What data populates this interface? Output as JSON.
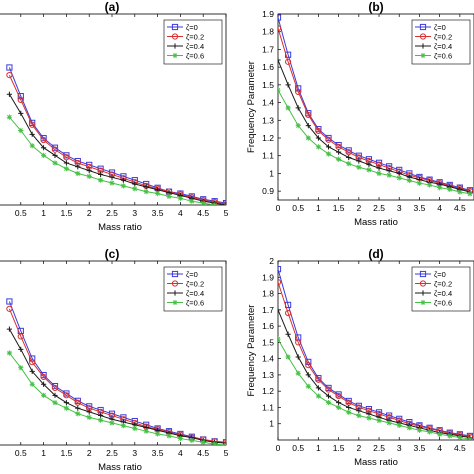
{
  "chart_data": [
    {
      "type": "line",
      "panel_label": "(a)",
      "xlabel": "Mass ratio",
      "ylabel": "",
      "xlim": [
        0,
        5
      ],
      "ylim": [
        0.9,
        1.9
      ],
      "x_ticks": [
        "0.5",
        "1",
        "1.5",
        "2",
        "2.5",
        "3",
        "3.5",
        "4",
        "4.5",
        "5"
      ],
      "y_ticks": [],
      "legend": {
        "placement": "top-right"
      },
      "x": [
        0.25,
        0.5,
        0.75,
        1,
        1.25,
        1.5,
        1.75,
        2,
        2.25,
        2.5,
        2.75,
        3,
        3.25,
        3.5,
        3.75,
        4,
        4.25,
        4.5,
        4.75,
        5
      ],
      "series": [
        {
          "name": "ζ=0",
          "color": "#3b3bdb",
          "marker": "square",
          "values": [
            1.62,
            1.47,
            1.33,
            1.25,
            1.2,
            1.16,
            1.13,
            1.11,
            1.09,
            1.07,
            1.05,
            1.03,
            1.01,
            0.99,
            0.97,
            0.96,
            0.945,
            0.93,
            0.92,
            0.91
          ]
        },
        {
          "name": "ζ=0.2",
          "color": "#d93030",
          "marker": "circle",
          "values": [
            1.58,
            1.45,
            1.32,
            1.24,
            1.19,
            1.15,
            1.12,
            1.1,
            1.08,
            1.06,
            1.04,
            1.02,
            1.0,
            0.985,
            0.97,
            0.955,
            0.94,
            0.925,
            0.915,
            0.905
          ]
        },
        {
          "name": "ζ=0.4",
          "color": "#1a1a1a",
          "marker": "plus",
          "values": [
            1.48,
            1.38,
            1.27,
            1.2,
            1.16,
            1.12,
            1.1,
            1.08,
            1.06,
            1.045,
            1.03,
            1.01,
            0.995,
            0.98,
            0.965,
            0.95,
            0.935,
            0.92,
            0.91,
            0.9
          ]
        },
        {
          "name": "ζ=0.6",
          "color": "#44c044",
          "marker": "star",
          "values": [
            1.36,
            1.29,
            1.21,
            1.16,
            1.12,
            1.09,
            1.065,
            1.05,
            1.03,
            1.015,
            1.0,
            0.985,
            0.97,
            0.96,
            0.945,
            0.935,
            0.92,
            0.91,
            0.9,
            0.89
          ]
        }
      ]
    },
    {
      "type": "line",
      "panel_label": "(b)",
      "xlabel": "Mass ratio",
      "ylabel": "Frequency Parameter",
      "xlim": [
        0,
        4.85
      ],
      "ylim": [
        0.85,
        1.9
      ],
      "x_ticks": [
        "0",
        "0.5",
        "1",
        "1.5",
        "2",
        "2.5",
        "3",
        "3.5",
        "4",
        "4.5"
      ],
      "y_ticks": [
        "0.9",
        "1",
        "1.1",
        "1.2",
        "1.3",
        "1.4",
        "1.5",
        "1.6",
        "1.7",
        "1.8",
        "1.9"
      ],
      "legend": {
        "placement": "top-right"
      },
      "x": [
        0,
        0.25,
        0.5,
        0.75,
        1,
        1.25,
        1.5,
        1.75,
        2,
        2.25,
        2.5,
        2.75,
        3,
        3.25,
        3.5,
        3.75,
        4,
        4.25,
        4.5,
        4.75
      ],
      "series": [
        {
          "name": "ζ=0",
          "color": "#3b3bdb",
          "marker": "square",
          "values": [
            1.88,
            1.67,
            1.48,
            1.34,
            1.25,
            1.2,
            1.16,
            1.13,
            1.1,
            1.08,
            1.06,
            1.04,
            1.02,
            1.0,
            0.98,
            0.965,
            0.95,
            0.935,
            0.92,
            0.905
          ]
        },
        {
          "name": "ζ=0.2",
          "color": "#d93030",
          "marker": "circle",
          "values": [
            1.82,
            1.63,
            1.46,
            1.33,
            1.24,
            1.19,
            1.15,
            1.12,
            1.09,
            1.07,
            1.05,
            1.03,
            1.01,
            0.99,
            0.975,
            0.96,
            0.945,
            0.93,
            0.915,
            0.9
          ]
        },
        {
          "name": "ζ=0.4",
          "color": "#1a1a1a",
          "marker": "plus",
          "values": [
            1.64,
            1.5,
            1.37,
            1.27,
            1.2,
            1.15,
            1.12,
            1.09,
            1.07,
            1.05,
            1.03,
            1.015,
            1.0,
            0.98,
            0.965,
            0.95,
            0.94,
            0.925,
            0.91,
            0.895
          ]
        },
        {
          "name": "ζ=0.6",
          "color": "#44c044",
          "marker": "star",
          "values": [
            1.47,
            1.37,
            1.27,
            1.2,
            1.15,
            1.11,
            1.08,
            1.055,
            1.035,
            1.02,
            1.0,
            0.99,
            0.975,
            0.96,
            0.945,
            0.935,
            0.92,
            0.91,
            0.895,
            0.885
          ]
        }
      ]
    },
    {
      "type": "line",
      "panel_label": "(c)",
      "xlabel": "Mass ratio",
      "ylabel": "",
      "xlim": [
        0,
        5
      ],
      "ylim": [
        0.9,
        1.9
      ],
      "x_ticks": [
        "0.5",
        "1",
        "1.5",
        "2",
        "2.5",
        "3",
        "3.5",
        "4",
        "4.5",
        "5"
      ],
      "y_ticks": [],
      "legend": {
        "placement": "top-right"
      },
      "x": [
        0.25,
        0.5,
        0.75,
        1,
        1.25,
        1.5,
        1.75,
        2,
        2.25,
        2.5,
        2.75,
        3,
        3.25,
        3.5,
        3.75,
        4,
        4.25,
        4.5,
        4.75,
        5
      ],
      "series": [
        {
          "name": "ζ=0",
          "color": "#3b3bdb",
          "marker": "square",
          "values": [
            1.68,
            1.52,
            1.37,
            1.28,
            1.22,
            1.18,
            1.14,
            1.11,
            1.09,
            1.07,
            1.05,
            1.03,
            1.01,
            0.99,
            0.975,
            0.96,
            0.945,
            0.93,
            0.92,
            0.915
          ]
        },
        {
          "name": "ζ=0.2",
          "color": "#d93030",
          "marker": "circle",
          "values": [
            1.64,
            1.49,
            1.35,
            1.27,
            1.21,
            1.17,
            1.13,
            1.1,
            1.08,
            1.06,
            1.04,
            1.02,
            1.0,
            0.985,
            0.97,
            0.955,
            0.94,
            0.93,
            0.92,
            0.915
          ]
        },
        {
          "name": "ζ=0.4",
          "color": "#1a1a1a",
          "marker": "plus",
          "values": [
            1.53,
            1.42,
            1.3,
            1.23,
            1.17,
            1.13,
            1.1,
            1.08,
            1.06,
            1.04,
            1.025,
            1.01,
            0.995,
            0.98,
            0.965,
            0.95,
            0.94,
            0.925,
            0.915,
            0.91
          ]
        },
        {
          "name": "ζ=0.6",
          "color": "#44c044",
          "marker": "star",
          "values": [
            1.4,
            1.32,
            1.23,
            1.17,
            1.13,
            1.1,
            1.07,
            1.05,
            1.035,
            1.02,
            1.005,
            0.99,
            0.975,
            0.96,
            0.95,
            0.935,
            0.925,
            0.915,
            0.905,
            0.9
          ]
        }
      ]
    },
    {
      "type": "line",
      "panel_label": "(d)",
      "xlabel": "Mass ratio",
      "ylabel": "Frequency Parameter",
      "xlim": [
        0,
        4.85
      ],
      "ylim": [
        0.9,
        2.0
      ],
      "x_ticks": [
        "0",
        "0.5",
        "1",
        "1.5",
        "2",
        "2.5",
        "3",
        "3.5",
        "4",
        "4.5"
      ],
      "y_ticks": [
        "1",
        "1.1",
        "1.2",
        "1.3",
        "1.4",
        "1.5",
        "1.6",
        "1.7",
        "1.8",
        "1.9",
        "2"
      ],
      "legend": {
        "placement": "top-right"
      },
      "x": [
        0,
        0.25,
        0.5,
        0.75,
        1,
        1.25,
        1.5,
        1.75,
        2,
        2.25,
        2.5,
        2.75,
        3,
        3.25,
        3.5,
        3.75,
        4,
        4.25,
        4.5,
        4.75
      ],
      "series": [
        {
          "name": "ζ=0",
          "color": "#3b3bdb",
          "marker": "square",
          "values": [
            1.95,
            1.73,
            1.53,
            1.38,
            1.28,
            1.22,
            1.18,
            1.14,
            1.11,
            1.09,
            1.07,
            1.05,
            1.03,
            1.01,
            0.99,
            0.975,
            0.96,
            0.945,
            0.935,
            0.925
          ]
        },
        {
          "name": "ζ=0.2",
          "color": "#d93030",
          "marker": "circle",
          "values": [
            1.87,
            1.68,
            1.5,
            1.36,
            1.27,
            1.21,
            1.17,
            1.13,
            1.1,
            1.08,
            1.06,
            1.04,
            1.02,
            1.0,
            0.985,
            0.97,
            0.955,
            0.94,
            0.93,
            0.92
          ]
        },
        {
          "name": "ζ=0.4",
          "color": "#1a1a1a",
          "marker": "plus",
          "values": [
            1.7,
            1.55,
            1.41,
            1.3,
            1.22,
            1.17,
            1.13,
            1.1,
            1.08,
            1.06,
            1.04,
            1.02,
            1.005,
            0.99,
            0.975,
            0.96,
            0.945,
            0.935,
            0.925,
            0.915
          ]
        },
        {
          "name": "ζ=0.6",
          "color": "#44c044",
          "marker": "star",
          "values": [
            1.52,
            1.41,
            1.31,
            1.23,
            1.17,
            1.13,
            1.1,
            1.07,
            1.05,
            1.035,
            1.02,
            1.005,
            0.99,
            0.975,
            0.96,
            0.95,
            0.935,
            0.925,
            0.915,
            0.905
          ]
        }
      ]
    }
  ]
}
